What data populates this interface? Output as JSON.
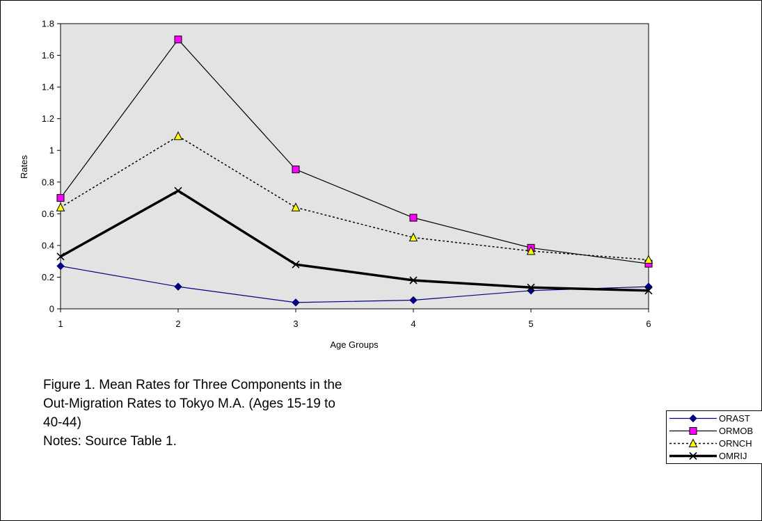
{
  "chart_data": {
    "type": "line",
    "title": "",
    "xlabel": "Age Groups",
    "ylabel": "Rates",
    "x": [
      1,
      2,
      3,
      4,
      5,
      6
    ],
    "xlim": [
      1,
      6
    ],
    "ylim": [
      0,
      1.8
    ],
    "y_ticks": [
      "0",
      "0.2",
      "0.4",
      "0.6",
      "0.8",
      "1",
      "1.2",
      "1.4",
      "1.6",
      "1.8"
    ],
    "x_ticks": [
      "1",
      "2",
      "3",
      "4",
      "5",
      "6"
    ],
    "plot_background": "#e3e3e3",
    "grid": false,
    "legend_position": "bottom-right",
    "series": [
      {
        "name": "ORAST",
        "values": [
          0.27,
          0.14,
          0.04,
          0.055,
          0.115,
          0.14
        ],
        "color": "#000080",
        "marker": "diamond",
        "marker_color": "#000080",
        "line_style": "solid"
      },
      {
        "name": "ORMOB",
        "values": [
          0.7,
          1.7,
          0.88,
          0.575,
          0.385,
          0.285
        ],
        "color": "#000000",
        "marker": "square",
        "marker_color": "#ff00ff",
        "line_style": "solid"
      },
      {
        "name": "ORNCH",
        "values": [
          0.64,
          1.09,
          0.64,
          0.45,
          0.365,
          0.31
        ],
        "color": "#000000",
        "marker": "triangle",
        "marker_color": "#ffff00",
        "line_style": "dotted"
      },
      {
        "name": "OMRIJ",
        "values": [
          0.33,
          0.745,
          0.28,
          0.18,
          0.135,
          0.115
        ],
        "color": "#000000",
        "marker": "x",
        "marker_color": "#000000",
        "line_style": "bold"
      }
    ]
  },
  "caption": {
    "lines": [
      "Figure 1.  Mean Rates for Three Components in the",
      "Out-Migration Rates to Tokyo M.A. (Ages 15-19 to",
      "40-44)",
      "Notes: Source Table 1."
    ]
  }
}
